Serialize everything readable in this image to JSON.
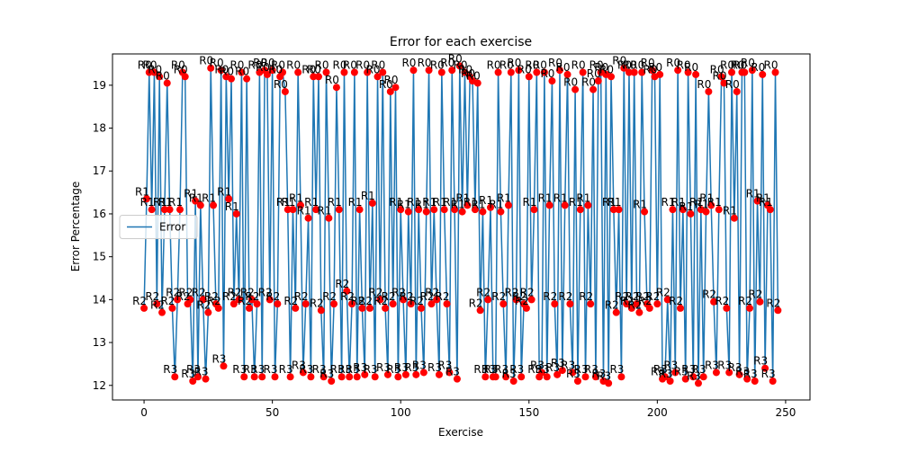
{
  "chart_data": {
    "type": "line",
    "title": "Error for each exercise",
    "x_label": "Exercise",
    "y_label": "Error Percentage",
    "x": [
      0,
      1,
      2,
      3,
      4,
      5,
      6,
      7,
      8,
      9,
      10,
      11,
      12,
      13,
      14,
      15,
      16,
      17,
      18,
      19,
      20,
      21,
      22,
      23,
      24,
      25,
      26,
      27,
      28,
      29,
      30,
      31,
      32,
      33,
      34,
      35,
      36,
      37,
      38,
      39,
      40,
      41,
      42,
      43,
      44,
      45,
      46,
      47,
      48,
      49,
      50,
      51,
      52,
      53,
      54,
      55,
      56,
      57,
      58,
      59,
      60,
      61,
      62,
      63,
      64,
      65,
      66,
      67,
      68,
      69,
      70,
      71,
      72,
      73,
      74,
      75,
      76,
      77,
      78,
      79,
      80,
      81,
      82,
      83,
      84,
      85,
      86,
      87,
      88,
      89,
      90,
      91,
      92,
      93,
      94,
      95,
      96,
      97,
      98,
      99,
      100,
      101,
      102,
      103,
      104,
      105,
      106,
      107,
      108,
      109,
      110,
      111,
      112,
      113,
      114,
      115,
      116,
      117,
      118,
      119,
      120,
      121,
      122,
      123,
      124,
      125,
      126,
      127,
      128,
      129,
      130,
      131,
      132,
      133,
      134,
      135,
      136,
      137,
      138,
      139,
      140,
      141,
      142,
      143,
      144,
      145,
      146,
      147,
      148,
      149,
      150,
      151,
      152,
      153,
      154,
      155,
      156,
      157,
      158,
      159,
      160,
      161,
      162,
      163,
      164,
      165,
      166,
      167,
      168,
      169,
      170,
      171,
      172,
      173,
      174,
      175,
      176,
      177,
      178,
      179,
      180,
      181,
      182,
      183,
      184,
      185,
      186,
      187,
      188,
      189,
      190,
      191,
      192,
      193,
      194,
      195,
      196,
      197,
      198,
      199,
      200,
      201,
      202,
      203,
      204,
      205,
      206,
      207,
      208,
      209,
      210,
      211,
      212,
      213,
      214,
      215,
      216,
      217,
      218,
      219,
      220,
      221,
      222,
      223,
      224,
      225,
      226,
      227,
      228,
      229,
      230,
      231,
      232,
      233,
      234,
      235,
      236,
      237,
      238,
      239,
      240,
      241,
      242,
      243,
      244,
      245,
      246,
      247
    ],
    "series": [
      {
        "name": "Error",
        "color": "#1f77b4",
        "marker_color": "#ff0000",
        "values": [
          13.8,
          16.35,
          19.3,
          16.1,
          19.3,
          13.9,
          19.2,
          13.7,
          16.1,
          19.05,
          16.1,
          13.8,
          12.2,
          14.0,
          16.1,
          19.3,
          19.2,
          13.9,
          14.0,
          12.1,
          16.3,
          12.2,
          16.2,
          14.0,
          12.15,
          13.7,
          19.4,
          16.2,
          13.9,
          13.8,
          19.35,
          12.45,
          19.2,
          16.35,
          19.15,
          13.9,
          16.0,
          14.0,
          19.3,
          12.2,
          19.15,
          13.8,
          14.0,
          12.2,
          13.9,
          19.3,
          12.2,
          19.35,
          19.25,
          14.0,
          19.35,
          12.2,
          13.9,
          19.2,
          19.3,
          18.85,
          16.1,
          12.2,
          16.1,
          13.8,
          19.3,
          16.2,
          12.3,
          13.9,
          15.9,
          12.2,
          19.2,
          16.1,
          19.2,
          13.75,
          12.2,
          19.3,
          15.9,
          12.1,
          13.9,
          18.95,
          16.1,
          12.2,
          19.3,
          14.2,
          12.2,
          13.9,
          19.3,
          12.2,
          16.1,
          13.8,
          12.25,
          19.3,
          13.8,
          16.25,
          12.2,
          19.2,
          14.0,
          19.3,
          13.8,
          12.25,
          18.85,
          13.9,
          18.95,
          12.2,
          16.1,
          14.0,
          12.25,
          16.05,
          13.9,
          19.35,
          12.25,
          16.1,
          13.8,
          12.3,
          16.05,
          19.35,
          13.9,
          16.1,
          14.0,
          12.25,
          19.3,
          16.1,
          13.9,
          12.3,
          19.35,
          16.1,
          12.15,
          19.45,
          16.05,
          19.3,
          16.2,
          19.2,
          19.1,
          16.1,
          19.05,
          13.75,
          16.05,
          12.2,
          14.0,
          16.15,
          12.2,
          12.2,
          19.3,
          16.05,
          13.9,
          12.2,
          16.2,
          19.3,
          12.1,
          14.0,
          19.35,
          12.2,
          13.9,
          13.8,
          19.2,
          14.0,
          16.1,
          19.3,
          12.2,
          12.3,
          19.3,
          12.2,
          16.2,
          19.1,
          13.9,
          12.25,
          19.35,
          12.35,
          16.2,
          19.25,
          13.9,
          12.3,
          18.9,
          12.1,
          16.1,
          19.3,
          12.2,
          16.2,
          13.9,
          18.9,
          12.2,
          19.1,
          19.3,
          12.1,
          19.25,
          12.05,
          19.2,
          16.1,
          13.7,
          16.1,
          12.2,
          19.4,
          13.9,
          19.3,
          13.8,
          19.3,
          13.9,
          13.7,
          19.3,
          16.05,
          13.9,
          13.8,
          19.35,
          19.2,
          13.9,
          19.25,
          12.15,
          12.2,
          14.0,
          12.1,
          16.1,
          12.3,
          19.35,
          13.8,
          16.1,
          12.15,
          19.3,
          16.0,
          12.2,
          19.25,
          12.05,
          16.1,
          12.2,
          16.05,
          18.85,
          16.2,
          13.95,
          12.3,
          16.1,
          19.2,
          19.05,
          13.8,
          12.3,
          19.3,
          15.9,
          18.85,
          12.25,
          19.3,
          19.3,
          12.15,
          13.8,
          19.35,
          12.1,
          16.3,
          13.95,
          19.25,
          12.4,
          16.2,
          16.1,
          12.1,
          19.3,
          13.75
        ]
      }
    ],
    "point_labels": [
      "R2",
      "R1",
      "R0",
      "R1",
      "R0",
      "R2",
      "R0",
      "R2",
      "R1",
      "R0",
      "R1",
      "R2",
      "R3",
      "R2",
      "R1",
      "R0",
      "R0",
      "R2",
      "R2",
      "R3",
      "R1",
      "R3",
      "R1",
      "R2",
      "R3",
      "R2",
      "R0",
      "R1",
      "R2",
      "R2",
      "R0",
      "R3",
      "R0",
      "R1",
      "R0",
      "R2",
      "R1",
      "R2",
      "R0",
      "R3",
      "R0",
      "R2",
      "R2",
      "R3",
      "R2",
      "R0",
      "R3",
      "R0",
      "R0",
      "R2",
      "R0",
      "R3",
      "R2",
      "R0",
      "R0",
      "R0",
      "R1",
      "R3",
      "R1",
      "R2",
      "R0",
      "R1",
      "R3",
      "R2",
      "R1",
      "R3",
      "R0",
      "R1",
      "R0",
      "R2",
      "R3",
      "R0",
      "R1",
      "R3",
      "R2",
      "R0",
      "R1",
      "R3",
      "R0",
      "R2",
      "R3",
      "R2",
      "R0",
      "R3",
      "R1",
      "R2",
      "R3",
      "R0",
      "R2",
      "R1",
      "R3",
      "R0",
      "R2",
      "R0",
      "R2",
      "R3",
      "R0",
      "R2",
      "R0",
      "R3",
      "R1",
      "R2",
      "R3",
      "R1",
      "R2",
      "R0",
      "R3",
      "R1",
      "R2",
      "R3",
      "R1",
      "R0",
      "R2",
      "R1",
      "R2",
      "R3",
      "R0",
      "R1",
      "R2",
      "R3",
      "R0",
      "R1",
      "R3",
      "R0",
      "R1",
      "R0",
      "R1",
      "R0",
      "R0",
      "R1",
      "R0",
      "R2",
      "R1",
      "R3",
      "R2",
      "R1",
      "R3",
      "R3",
      "R0",
      "R1",
      "R2",
      "R3",
      "R1",
      "R0",
      "R3",
      "R2",
      "R0",
      "R3",
      "R2",
      "R2",
      "R0",
      "R2",
      "R1",
      "R0",
      "R3",
      "R3",
      "R0",
      "R3",
      "R1",
      "R0",
      "R2",
      "R3",
      "R0",
      "R3",
      "R1",
      "R0",
      "R2",
      "R3",
      "R0",
      "R3",
      "R1",
      "R0",
      "R3",
      "R1",
      "R2",
      "R0",
      "R3",
      "R0",
      "R0",
      "R3",
      "R0",
      "R3",
      "R0",
      "R1",
      "R2",
      "R1",
      "R3",
      "R0",
      "R2",
      "R0",
      "R2",
      "R0",
      "R2",
      "R2",
      "R0",
      "R1",
      "R2",
      "R2",
      "R0",
      "R0",
      "R2",
      "R0",
      "R3",
      "R3",
      "R2",
      "R3",
      "R1",
      "R3",
      "R0",
      "R2",
      "R1",
      "R3",
      "R0",
      "R1",
      "R3",
      "R0",
      "R3",
      "R1",
      "R3",
      "R1",
      "R0",
      "R1",
      "R2",
      "R3",
      "R1",
      "R0",
      "R0",
      "R2",
      "R3",
      "R0",
      "R1",
      "R0",
      "R3",
      "R0",
      "R0",
      "R3",
      "R2",
      "R0",
      "R3",
      "R1",
      "R2",
      "R0",
      "R3",
      "R1",
      "R1",
      "R3",
      "R0",
      "R2"
    ],
    "xlim": [
      -12.3,
      259.5
    ],
    "ylim": [
      11.66,
      19.73
    ],
    "xticks": [
      0,
      50,
      100,
      150,
      200,
      250
    ],
    "yticks": [
      12,
      13,
      14,
      15,
      16,
      17,
      18,
      19
    ],
    "grid": false,
    "legend": "center left"
  }
}
